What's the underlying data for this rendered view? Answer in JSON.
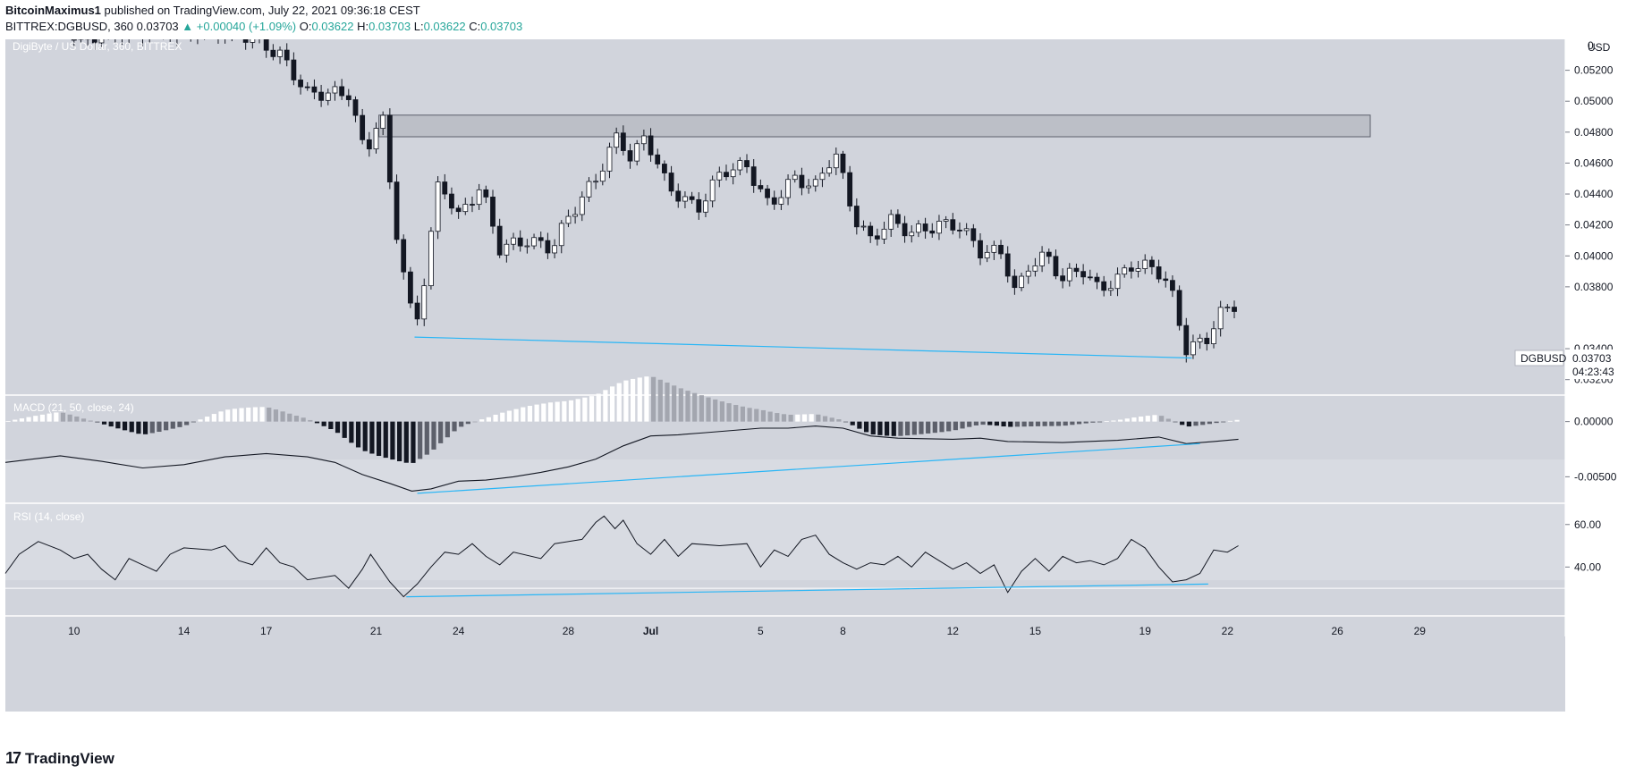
{
  "header": {
    "author": "BitcoinMaximus1",
    "published": "published on TradingView.com, July 22, 2021 09:36:18 CEST",
    "symbol": "BITTREX:DGBUSD, 360",
    "last": "0.03703",
    "change_arrow": "▲",
    "change": "+0.00040 (+1.09%)",
    "o_label": "O:",
    "o_value": "0.03622",
    "h_label": "H:",
    "h_value": "0.03703",
    "l_label": "L:",
    "l_value": "0.03622",
    "c_label": "C:",
    "c_value": "0.03703"
  },
  "footer": {
    "logo_icon": "tradingview-logo-icon",
    "brand": "TradingView"
  },
  "chart_data": [
    {
      "type": "candlestick",
      "title": "DigiByte / US Dollar, 360, BITTREX",
      "currency": "USD",
      "ylim": [
        0.031,
        0.054
      ],
      "yticks": [
        "0.05200",
        "0.05000",
        "0.04800",
        "0.04600",
        "0.04400",
        "0.04200",
        "0.04000",
        "0.03800",
        "0.03400",
        "0.03200"
      ],
      "y_top_label": "0.",
      "x_ticks": [
        "10",
        "14",
        "17",
        "21",
        "24",
        "28",
        "Jul",
        "5",
        "8",
        "12",
        "15",
        "19",
        "22",
        "26",
        "29"
      ],
      "x_tick_index": [
        10,
        14,
        17,
        21,
        24,
        28,
        31,
        35,
        38,
        42,
        45,
        49,
        52,
        56,
        59
      ],
      "x_range_index": [
        7.5,
        64.3
      ],
      "last_price_label": "DGBUSD",
      "last_price": "0.03703",
      "countdown": "04:23:43",
      "resistance_zone": {
        "from_index": 21.1,
        "to_index": 57.2,
        "low": 0.0477,
        "high": 0.0491
      },
      "trendline": {
        "from_index": 22.4,
        "from_value": 0.03475,
        "to_index": 50.7,
        "to_value": 0.0334
      },
      "keypoints": [
        {
          "i": 10,
          "v": 0.054
        },
        {
          "i": 12,
          "v": 0.0545
        },
        {
          "i": 16,
          "v": 0.0545
        },
        {
          "i": 17.5,
          "v": 0.053
        },
        {
          "i": 18.5,
          "v": 0.0505
        },
        {
          "i": 20,
          "v": 0.0505
        },
        {
          "i": 20.6,
          "v": 0.0465
        },
        {
          "i": 21.2,
          "v": 0.0495
        },
        {
          "i": 21.6,
          "v": 0.043
        },
        {
          "i": 22.4,
          "v": 0.035
        },
        {
          "i": 22.8,
          "v": 0.039
        },
        {
          "i": 23.3,
          "v": 0.045
        },
        {
          "i": 24,
          "v": 0.0425
        },
        {
          "i": 24.8,
          "v": 0.0445
        },
        {
          "i": 25.5,
          "v": 0.0405
        },
        {
          "i": 26.5,
          "v": 0.041
        },
        {
          "i": 27.4,
          "v": 0.0405
        },
        {
          "i": 28,
          "v": 0.0425
        },
        {
          "i": 29,
          "v": 0.045
        },
        {
          "i": 29.8,
          "v": 0.0478
        },
        {
          "i": 30.3,
          "v": 0.0462
        },
        {
          "i": 30.8,
          "v": 0.0478
        },
        {
          "i": 31.6,
          "v": 0.0445
        },
        {
          "i": 32.7,
          "v": 0.043
        },
        {
          "i": 33.6,
          "v": 0.0455
        },
        {
          "i": 34.5,
          "v": 0.0458
        },
        {
          "i": 35.3,
          "v": 0.0432
        },
        {
          "i": 36.2,
          "v": 0.045
        },
        {
          "i": 37,
          "v": 0.0445
        },
        {
          "i": 37.7,
          "v": 0.0468
        },
        {
          "i": 38.4,
          "v": 0.0425
        },
        {
          "i": 39,
          "v": 0.041
        },
        {
          "i": 39.7,
          "v": 0.0423
        },
        {
          "i": 40.5,
          "v": 0.0415
        },
        {
          "i": 41.5,
          "v": 0.042
        },
        {
          "i": 42.2,
          "v": 0.042
        },
        {
          "i": 43,
          "v": 0.0403
        },
        {
          "i": 43.8,
          "v": 0.0402
        },
        {
          "i": 44.3,
          "v": 0.0375
        },
        {
          "i": 44.8,
          "v": 0.0395
        },
        {
          "i": 45.4,
          "v": 0.04
        },
        {
          "i": 46,
          "v": 0.0385
        },
        {
          "i": 46.7,
          "v": 0.0392
        },
        {
          "i": 47.3,
          "v": 0.0378
        },
        {
          "i": 48,
          "v": 0.0385
        },
        {
          "i": 48.5,
          "v": 0.0394
        },
        {
          "i": 49.4,
          "v": 0.0392
        },
        {
          "i": 49.9,
          "v": 0.038
        },
        {
          "i": 50.5,
          "v": 0.034
        },
        {
          "i": 51.2,
          "v": 0.0345
        },
        {
          "i": 51.7,
          "v": 0.0362
        },
        {
          "i": 52.2,
          "v": 0.0368
        },
        {
          "i": 52.4,
          "v": 0.037
        }
      ]
    },
    {
      "type": "macd",
      "title": "MACD (21, 50, close, 24)",
      "ylim": [
        -0.0074,
        0.0024
      ],
      "yticks": [
        "0.00000",
        "-0.00500"
      ],
      "keypoints": [
        {
          "i": 7.5,
          "v": -0.0037
        },
        {
          "i": 8.5,
          "v": -0.0034
        },
        {
          "i": 9.5,
          "v": -0.0031
        },
        {
          "i": 11,
          "v": -0.0036
        },
        {
          "i": 12.5,
          "v": -0.0042
        },
        {
          "i": 14,
          "v": -0.0039
        },
        {
          "i": 15.5,
          "v": -0.0032
        },
        {
          "i": 17,
          "v": -0.0029
        },
        {
          "i": 18.5,
          "v": -0.0032
        },
        {
          "i": 19.5,
          "v": -0.0037
        },
        {
          "i": 20.5,
          "v": -0.0048
        },
        {
          "i": 21.5,
          "v": -0.0056
        },
        {
          "i": 22.3,
          "v": -0.0063
        },
        {
          "i": 23,
          "v": -0.0061
        },
        {
          "i": 24,
          "v": -0.0054
        },
        {
          "i": 25,
          "v": -0.0053
        },
        {
          "i": 26,
          "v": -0.005
        },
        {
          "i": 27,
          "v": -0.0046
        },
        {
          "i": 28,
          "v": -0.0041
        },
        {
          "i": 29,
          "v": -0.0034
        },
        {
          "i": 30,
          "v": -0.0022
        },
        {
          "i": 31,
          "v": -0.0013
        },
        {
          "i": 32,
          "v": -0.0012
        },
        {
          "i": 33,
          "v": -0.001
        },
        {
          "i": 35,
          "v": -0.0006
        },
        {
          "i": 36,
          "v": -0.0006
        },
        {
          "i": 37,
          "v": -0.0004
        },
        {
          "i": 38,
          "v": -0.0006
        },
        {
          "i": 39,
          "v": -0.0013
        },
        {
          "i": 40,
          "v": -0.0015
        },
        {
          "i": 42,
          "v": -0.0016
        },
        {
          "i": 43,
          "v": -0.0015
        },
        {
          "i": 44,
          "v": -0.0018
        },
        {
          "i": 46,
          "v": -0.0019
        },
        {
          "i": 48,
          "v": -0.0017
        },
        {
          "i": 49.5,
          "v": -0.0014
        },
        {
          "i": 50.5,
          "v": -0.002
        },
        {
          "i": 51.5,
          "v": -0.0018
        },
        {
          "i": 52.4,
          "v": -0.0016
        }
      ],
      "trendline": {
        "from_index": 22.5,
        "from_value": -0.0065,
        "to_index": 51.0,
        "to_value": -0.002
      }
    },
    {
      "type": "rsi",
      "title": "RSI (14, close)",
      "ylim": [
        17,
        70
      ],
      "yticks": [
        "60.00",
        "40.00"
      ],
      "band": [
        30,
        70
      ],
      "keypoints": [
        {
          "i": 7.5,
          "v": 37
        },
        {
          "i": 8,
          "v": 46
        },
        {
          "i": 8.7,
          "v": 52
        },
        {
          "i": 9.5,
          "v": 48
        },
        {
          "i": 10,
          "v": 44
        },
        {
          "i": 10.5,
          "v": 46
        },
        {
          "i": 11,
          "v": 39
        },
        {
          "i": 11.5,
          "v": 34
        },
        {
          "i": 12,
          "v": 44
        },
        {
          "i": 12.5,
          "v": 41
        },
        {
          "i": 13,
          "v": 38
        },
        {
          "i": 13.5,
          "v": 46
        },
        {
          "i": 14,
          "v": 49
        },
        {
          "i": 15,
          "v": 48
        },
        {
          "i": 15.5,
          "v": 50
        },
        {
          "i": 16,
          "v": 43
        },
        {
          "i": 16.5,
          "v": 41
        },
        {
          "i": 17,
          "v": 49
        },
        {
          "i": 17.5,
          "v": 42
        },
        {
          "i": 18,
          "v": 40
        },
        {
          "i": 18.5,
          "v": 34
        },
        {
          "i": 19.5,
          "v": 36
        },
        {
          "i": 20,
          "v": 30
        },
        {
          "i": 20.5,
          "v": 39
        },
        {
          "i": 20.8,
          "v": 46
        },
        {
          "i": 21.5,
          "v": 33
        },
        {
          "i": 22,
          "v": 26
        },
        {
          "i": 22.5,
          "v": 32
        },
        {
          "i": 23,
          "v": 40
        },
        {
          "i": 23.5,
          "v": 47
        },
        {
          "i": 24,
          "v": 46
        },
        {
          "i": 24.5,
          "v": 51
        },
        {
          "i": 25,
          "v": 45
        },
        {
          "i": 25.5,
          "v": 41
        },
        {
          "i": 26,
          "v": 47
        },
        {
          "i": 27,
          "v": 44
        },
        {
          "i": 27.5,
          "v": 51
        },
        {
          "i": 28.5,
          "v": 53
        },
        {
          "i": 29,
          "v": 61
        },
        {
          "i": 29.3,
          "v": 64
        },
        {
          "i": 29.7,
          "v": 58
        },
        {
          "i": 30,
          "v": 62
        },
        {
          "i": 30.5,
          "v": 51
        },
        {
          "i": 31,
          "v": 46
        },
        {
          "i": 31.5,
          "v": 53
        },
        {
          "i": 32,
          "v": 45
        },
        {
          "i": 32.5,
          "v": 51
        },
        {
          "i": 33.5,
          "v": 50
        },
        {
          "i": 34.5,
          "v": 51
        },
        {
          "i": 35,
          "v": 40
        },
        {
          "i": 35.5,
          "v": 48
        },
        {
          "i": 36,
          "v": 45
        },
        {
          "i": 36.5,
          "v": 53
        },
        {
          "i": 37,
          "v": 55
        },
        {
          "i": 37.5,
          "v": 46
        },
        {
          "i": 38,
          "v": 42
        },
        {
          "i": 38.5,
          "v": 39
        },
        {
          "i": 39,
          "v": 42
        },
        {
          "i": 39.5,
          "v": 41
        },
        {
          "i": 40,
          "v": 45
        },
        {
          "i": 40.5,
          "v": 40
        },
        {
          "i": 41,
          "v": 47
        },
        {
          "i": 41.5,
          "v": 43
        },
        {
          "i": 42,
          "v": 39
        },
        {
          "i": 42.5,
          "v": 42
        },
        {
          "i": 43,
          "v": 37
        },
        {
          "i": 43.5,
          "v": 41
        },
        {
          "i": 44,
          "v": 28
        },
        {
          "i": 44.5,
          "v": 38
        },
        {
          "i": 45,
          "v": 44
        },
        {
          "i": 45.5,
          "v": 38
        },
        {
          "i": 46,
          "v": 45
        },
        {
          "i": 46.5,
          "v": 42
        },
        {
          "i": 47,
          "v": 43
        },
        {
          "i": 47.5,
          "v": 41
        },
        {
          "i": 48,
          "v": 44
        },
        {
          "i": 48.5,
          "v": 53
        },
        {
          "i": 49,
          "v": 49
        },
        {
          "i": 49.5,
          "v": 40
        },
        {
          "i": 50,
          "v": 33
        },
        {
          "i": 50.5,
          "v": 34
        },
        {
          "i": 51,
          "v": 37
        },
        {
          "i": 51.5,
          "v": 48
        },
        {
          "i": 52,
          "v": 47
        },
        {
          "i": 52.4,
          "v": 50
        }
      ],
      "trendline": {
        "from_index": 22.1,
        "from_value": 26,
        "to_index": 51.3,
        "to_value": 32
      }
    }
  ]
}
